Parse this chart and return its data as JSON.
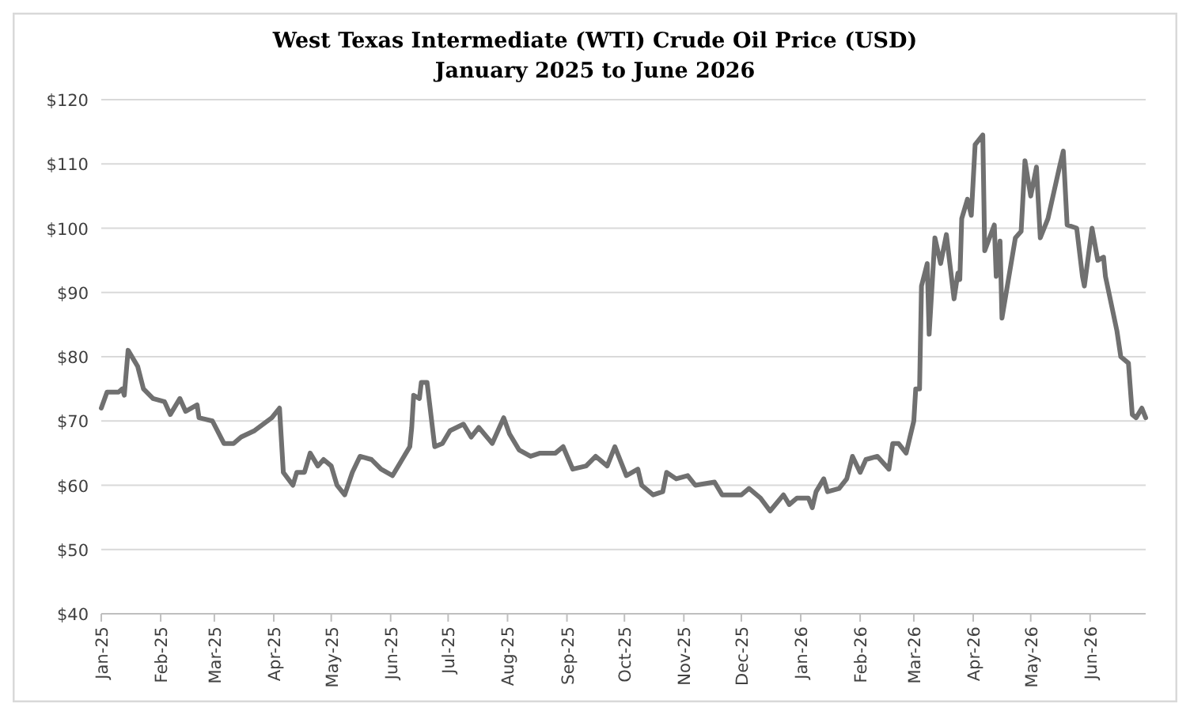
{
  "chart_data": {
    "type": "line",
    "title": "West Texas Intermediate (WTI) Crude Oil Price (USD)",
    "subtitle": "January 2025 to June 2026",
    "x": [
      "2025-01-01",
      "2025-01-04",
      "2025-01-10",
      "2025-01-12",
      "2025-01-13",
      "2025-01-14",
      "2025-01-15",
      "2025-01-20",
      "2025-01-23",
      "2025-01-28",
      "2025-02-03",
      "2025-02-06",
      "2025-02-11",
      "2025-02-14",
      "2025-02-20",
      "2025-02-21",
      "2025-02-28",
      "2025-03-06",
      "2025-03-11",
      "2025-03-15",
      "2025-03-22",
      "2025-03-31",
      "2025-04-04",
      "2025-04-06",
      "2025-04-11",
      "2025-04-13",
      "2025-04-17",
      "2025-04-20",
      "2025-04-24",
      "2025-04-27",
      "2025-05-01",
      "2025-05-04",
      "2025-05-08",
      "2025-05-12",
      "2025-05-16",
      "2025-05-22",
      "2025-05-27",
      "2025-06-02",
      "2025-06-07",
      "2025-06-11",
      "2025-06-12",
      "2025-06-13",
      "2025-06-16",
      "2025-06-17",
      "2025-06-20",
      "2025-06-24",
      "2025-06-28",
      "2025-07-02",
      "2025-07-09",
      "2025-07-13",
      "2025-07-17",
      "2025-07-24",
      "2025-07-30",
      "2025-08-02",
      "2025-08-07",
      "2025-08-13",
      "2025-08-18",
      "2025-08-26",
      "2025-08-30",
      "2025-09-04",
      "2025-09-11",
      "2025-09-16",
      "2025-09-22",
      "2025-09-26",
      "2025-10-02",
      "2025-10-08",
      "2025-10-10",
      "2025-10-16",
      "2025-10-21",
      "2025-10-23",
      "2025-10-28",
      "2025-11-03",
      "2025-11-07",
      "2025-11-17",
      "2025-11-21",
      "2025-12-01",
      "2025-12-05",
      "2025-12-11",
      "2025-12-16",
      "2025-12-23",
      "2025-12-26",
      "2025-12-30",
      "2026-01-05",
      "2026-01-07",
      "2026-01-09",
      "2026-01-13",
      "2026-01-15",
      "2026-01-21",
      "2026-01-25",
      "2026-01-28",
      "2026-02-01",
      "2026-02-04",
      "2026-02-10",
      "2026-02-16",
      "2026-02-18",
      "2026-02-21",
      "2026-02-25",
      "2026-03-01",
      "2026-03-02",
      "2026-03-04",
      "2026-03-05",
      "2026-03-08",
      "2026-03-09",
      "2026-03-12",
      "2026-03-15",
      "2026-03-18",
      "2026-03-22",
      "2026-03-24",
      "2026-03-25",
      "2026-03-26",
      "2026-03-29",
      "2026-03-31",
      "2026-04-02",
      "2026-04-06",
      "2026-04-07",
      "2026-04-12",
      "2026-04-13",
      "2026-04-15",
      "2026-04-16",
      "2026-04-23",
      "2026-04-26",
      "2026-04-28",
      "2026-05-01",
      "2026-05-04",
      "2026-05-06",
      "2026-05-10",
      "2026-05-13",
      "2026-05-16",
      "2026-05-18",
      "2026-05-20",
      "2026-05-25",
      "2026-05-28",
      "2026-05-29",
      "2026-06-02",
      "2026-06-05",
      "2026-06-08",
      "2026-06-09",
      "2026-06-15",
      "2026-06-17",
      "2026-06-21",
      "2026-06-23",
      "2026-06-25",
      "2026-06-28",
      "2026-06-30"
    ],
    "series": [
      {
        "color": "#707070",
        "values": [
          72,
          74.5,
          74.5,
          75,
          74,
          77.5,
          81,
          78.5,
          75,
          73.5,
          73,
          71,
          73.5,
          71.5,
          72.5,
          70.5,
          70,
          66.5,
          66.5,
          67.5,
          68.5,
          70.5,
          72,
          62,
          60,
          62,
          62,
          65,
          63,
          64,
          63,
          60,
          58.5,
          62,
          64.5,
          64,
          62.5,
          61.5,
          64,
          66,
          69,
          74,
          73.5,
          76,
          76,
          66,
          66.5,
          68.5,
          69.5,
          67.5,
          69,
          66.5,
          70.5,
          68,
          65.5,
          64.5,
          65,
          65,
          66,
          62.5,
          63,
          64.5,
          63,
          66,
          61.5,
          62.5,
          60,
          58.5,
          59,
          62,
          61,
          61.5,
          60,
          60.5,
          58.5,
          58.5,
          59.5,
          58,
          56,
          58.5,
          57,
          58,
          58,
          56.5,
          59,
          61,
          59,
          59.5,
          61,
          64.5,
          62,
          64,
          64.5,
          62.5,
          66.5,
          66.5,
          65,
          70,
          75,
          75,
          91,
          94.5,
          83.5,
          98.5,
          94.5,
          99,
          89,
          93,
          92,
          101.5,
          104.5,
          102,
          113,
          114.5,
          96.5,
          100.5,
          92.5,
          98,
          86,
          98.5,
          99.5,
          110.5,
          105,
          109.5,
          98.5,
          101.5,
          105.5,
          109.5,
          112,
          100.5,
          100,
          92.5,
          91,
          100,
          95,
          95.5,
          92.5,
          84,
          80,
          79,
          71,
          70.5,
          72,
          70.5
        ]
      }
    ],
    "xlim": [
      "2025-01-01",
      "2026-06-30"
    ],
    "xticks": [
      {
        "value": "2025-01-01",
        "label": "Jan-25"
      },
      {
        "value": "2025-02-01",
        "label": "Feb-25"
      },
      {
        "value": "2025-03-01",
        "label": "Mar-25"
      },
      {
        "value": "2025-04-01",
        "label": "Apr-25"
      },
      {
        "value": "2025-05-01",
        "label": "May-25"
      },
      {
        "value": "2025-06-01",
        "label": "Jun-25"
      },
      {
        "value": "2025-07-01",
        "label": "Jul-25"
      },
      {
        "value": "2025-08-01",
        "label": "Aug-25"
      },
      {
        "value": "2025-09-01",
        "label": "Sep-25"
      },
      {
        "value": "2025-10-01",
        "label": "Oct-25"
      },
      {
        "value": "2025-11-01",
        "label": "Nov-25"
      },
      {
        "value": "2025-12-01",
        "label": "Dec-25"
      },
      {
        "value": "2026-01-01",
        "label": "Jan-26"
      },
      {
        "value": "2026-02-01",
        "label": "Feb-26"
      },
      {
        "value": "2026-03-01",
        "label": "Mar-26"
      },
      {
        "value": "2026-04-01",
        "label": "Apr-26"
      },
      {
        "value": "2026-05-01",
        "label": "May-26"
      },
      {
        "value": "2026-06-01",
        "label": "Jun-26"
      }
    ],
    "ylim": [
      40,
      120
    ],
    "yticks": [
      {
        "value": 40,
        "label": "$40"
      },
      {
        "value": 50,
        "label": "$50"
      },
      {
        "value": 60,
        "label": "$60"
      },
      {
        "value": 70,
        "label": "$70"
      },
      {
        "value": 80,
        "label": "$80"
      },
      {
        "value": 90,
        "label": "$90"
      },
      {
        "value": 100,
        "label": "$100"
      },
      {
        "value": 110,
        "label": "$110"
      },
      {
        "value": 120,
        "label": "$120"
      }
    ],
    "grid": "y",
    "marker": "none",
    "line_style": "solid"
  }
}
